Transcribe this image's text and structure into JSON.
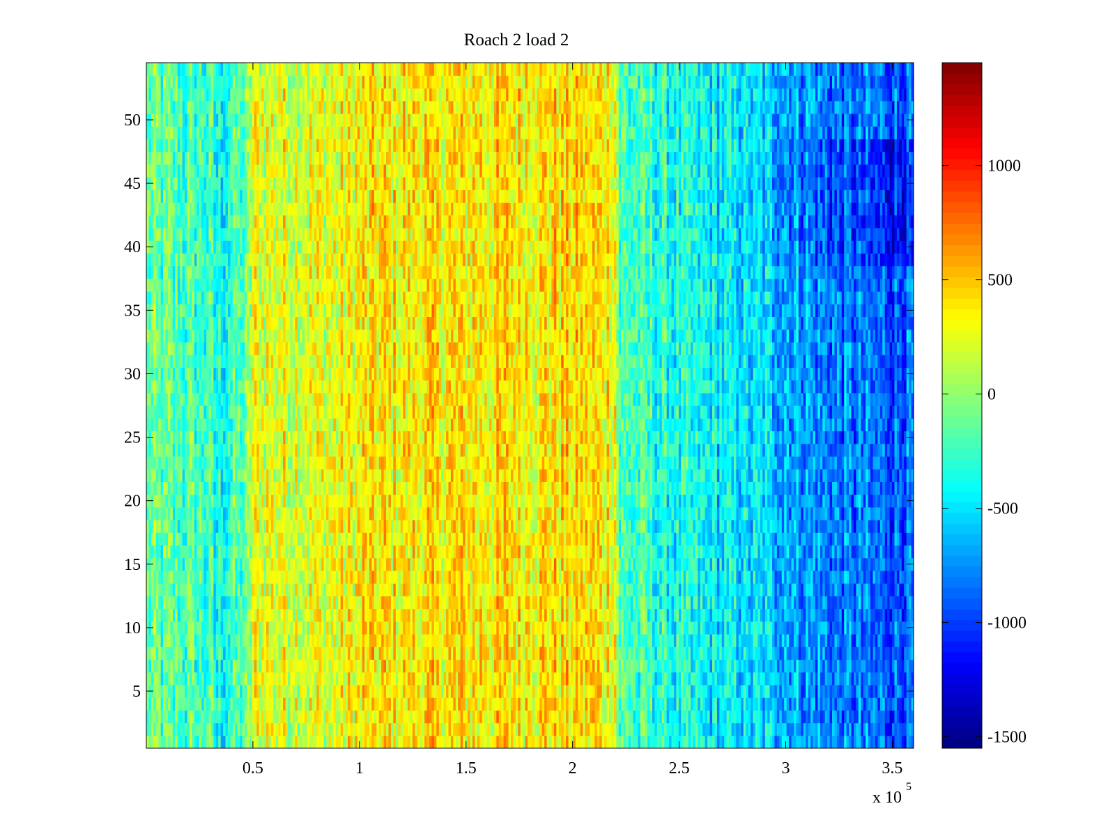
{
  "chart_data": {
    "type": "heatmap",
    "title": "Roach 2 load 2",
    "xlabel": "",
    "ylabel": "",
    "x_multiplier_label": "x 10",
    "x_multiplier_exponent": "5",
    "xlim": [
      0,
      3.6
    ],
    "ylim": [
      0.5,
      54.5
    ],
    "rows": 54,
    "x_ticks": [
      {
        "value": 0.5,
        "label": "0.5"
      },
      {
        "value": 1.0,
        "label": "1"
      },
      {
        "value": 1.5,
        "label": "1.5"
      },
      {
        "value": 2.0,
        "label": "2"
      },
      {
        "value": 2.5,
        "label": "2.5"
      },
      {
        "value": 3.0,
        "label": "3"
      },
      {
        "value": 3.5,
        "label": "3.5"
      }
    ],
    "y_ticks": [
      {
        "value": 5,
        "label": "5"
      },
      {
        "value": 10,
        "label": "10"
      },
      {
        "value": 15,
        "label": "15"
      },
      {
        "value": 20,
        "label": "20"
      },
      {
        "value": 25,
        "label": "25"
      },
      {
        "value": 30,
        "label": "30"
      },
      {
        "value": 35,
        "label": "35"
      },
      {
        "value": 40,
        "label": "40"
      },
      {
        "value": 45,
        "label": "45"
      },
      {
        "value": 50,
        "label": "50"
      }
    ],
    "colorbar": {
      "colormap": "jet",
      "range": [
        -1550,
        1450
      ],
      "ticks": [
        {
          "value": 1000,
          "label": "1000"
        },
        {
          "value": 500,
          "label": "500"
        },
        {
          "value": 0,
          "label": "0"
        },
        {
          "value": -500,
          "label": "-500"
        },
        {
          "value": -1000,
          "label": "-1000"
        },
        {
          "value": -1500,
          "label": "-1500"
        }
      ]
    },
    "column_profile": [
      {
        "x": 0.0,
        "value": -150
      },
      {
        "x": 0.3,
        "value": -250
      },
      {
        "x": 0.33,
        "value": -400
      },
      {
        "x": 0.47,
        "value": -150
      },
      {
        "x": 0.5,
        "value": 250
      },
      {
        "x": 0.9,
        "value": 250
      },
      {
        "x": 1.0,
        "value": 350
      },
      {
        "x": 1.5,
        "value": 380
      },
      {
        "x": 2.0,
        "value": 420
      },
      {
        "x": 2.2,
        "value": 350
      },
      {
        "x": 2.22,
        "value": -200
      },
      {
        "x": 2.5,
        "value": -400
      },
      {
        "x": 2.9,
        "value": -550
      },
      {
        "x": 3.2,
        "value": -800
      },
      {
        "x": 3.5,
        "value": -900
      },
      {
        "x": 3.6,
        "value": -850
      }
    ]
  }
}
